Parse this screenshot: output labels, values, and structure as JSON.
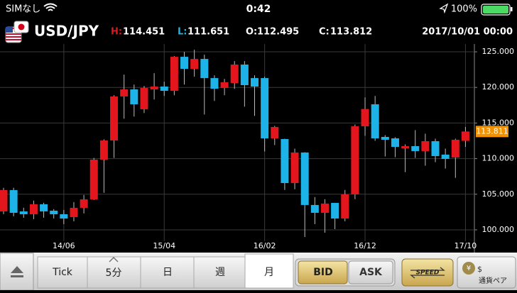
{
  "status_bar": {
    "carrier": "SIMなし",
    "time": "0:42",
    "battery": "100%"
  },
  "header": {
    "symbol": "USD/JPY",
    "high_label": "H:",
    "high": "114.451",
    "low_label": "L:",
    "low": "111.651",
    "open_label": "O:",
    "open": "112.495",
    "close_label": "C:",
    "close": "113.812",
    "datetime": "2017/10/01 00:00"
  },
  "chart_data": {
    "type": "candlestick",
    "categories": [
      null,
      null,
      null,
      null,
      null,
      null,
      "14/06",
      null,
      null,
      null,
      null,
      null,
      null,
      null,
      null,
      null,
      "15/04",
      null,
      null,
      null,
      null,
      null,
      null,
      null,
      null,
      null,
      "16/02",
      null,
      null,
      null,
      null,
      null,
      null,
      null,
      null,
      null,
      "16/12",
      null,
      null,
      null,
      null,
      null,
      null,
      null,
      null,
      null,
      "17/10"
    ],
    "open": [
      102.59,
      105.58,
      102.59,
      102.19,
      103.59,
      102.69,
      102.19,
      101.79,
      103.09,
      104.28,
      109.86,
      112.55,
      118.73,
      119.72,
      116.93,
      119.72,
      120.12,
      119.52,
      124.3,
      122.61,
      124.0,
      121.31,
      119.92,
      120.62,
      123.21,
      121.31,
      121.31,
      112.85,
      112.75,
      106.57,
      110.86,
      103.49,
      102.39,
      103.78,
      101.59,
      104.98,
      114.54,
      117.63,
      113.05,
      112.85,
      111.45,
      111.75,
      111.06,
      112.45,
      110.56,
      110.16,
      112.495
    ],
    "high": [
      105.9,
      105.9,
      103.1,
      104.1,
      103.8,
      102.9,
      102.8,
      103.9,
      104.9,
      110.1,
      112.7,
      118.9,
      121.8,
      120.4,
      120.2,
      122.0,
      120.8,
      124.4,
      125.0,
      125.3,
      124.6,
      121.7,
      121.2,
      123.7,
      123.7,
      121.7,
      121.5,
      114.6,
      112.8,
      111.4,
      110.9,
      104.6,
      104.3,
      103.8,
      105.6,
      114.8,
      118.6,
      118.8,
      113.3,
      113.0,
      112.0,
      114.0,
      113.5,
      112.8,
      111.4,
      112.8,
      114.451
    ],
    "low": [
      102.2,
      101.9,
      101.7,
      101.5,
      101.7,
      101.6,
      100.8,
      101.2,
      102.3,
      104.2,
      105.2,
      110.1,
      115.6,
      115.9,
      116.4,
      118.3,
      118.8,
      118.9,
      120.4,
      121.5,
      116.2,
      118.1,
      118.9,
      119.8,
      117.3,
      116.0,
      111.0,
      111.9,
      105.6,
      105.7,
      99.0,
      100.8,
      99.6,
      100.1,
      101.2,
      104.3,
      113.2,
      112.5,
      110.3,
      110.2,
      108.1,
      110.1,
      109.0,
      109.5,
      108.6,
      107.3,
      111.651
    ],
    "close": [
      105.58,
      102.39,
      102.19,
      103.59,
      102.59,
      102.19,
      101.59,
      103.09,
      104.28,
      109.86,
      112.55,
      118.73,
      119.72,
      117.63,
      119.92,
      120.12,
      119.52,
      124.3,
      122.61,
      124.0,
      121.31,
      119.82,
      120.72,
      123.21,
      120.32,
      120.12,
      112.85,
      114.44,
      106.57,
      110.86,
      103.49,
      102.39,
      103.69,
      101.59,
      104.98,
      114.54,
      116.97,
      112.85,
      112.65,
      111.65,
      111.75,
      111.06,
      112.45,
      110.36,
      109.96,
      112.65,
      113.812
    ],
    "up_color": "#e3161d",
    "down_color": "#1db3e8",
    "ylim": [
      98.6,
      126.1
    ],
    "yticks": [
      {
        "value": 100,
        "label": "100.000"
      },
      {
        "value": 105,
        "label": "105.000"
      },
      {
        "value": 110,
        "label": "110.000"
      },
      {
        "value": 115,
        "label": "115.000"
      },
      {
        "value": 120,
        "label": "120.000"
      },
      {
        "value": 125,
        "label": "125.000"
      }
    ],
    "grid": true,
    "last_price": 113.811,
    "last_price_color": "#f39200"
  },
  "toolbar": {
    "tabs": [
      "Tick",
      "5分",
      "日",
      "週",
      "月"
    ],
    "bid": "BID",
    "ask": "ASK",
    "speed": "SPEED",
    "currency_pair": "通貨ペア"
  }
}
